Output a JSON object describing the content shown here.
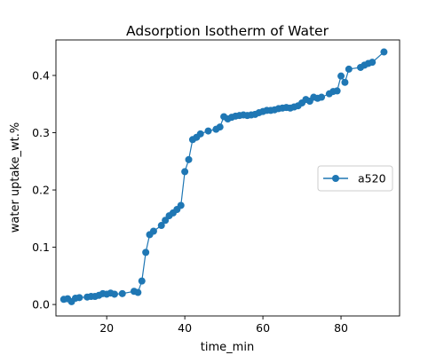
{
  "chart_data": {
    "type": "line",
    "title": "Adsorption Isotherm of Water",
    "xlabel": "time_min",
    "ylabel": "water uptake_wt.%",
    "xlim": [
      7,
      95
    ],
    "ylim": [
      -0.02,
      0.462
    ],
    "xticks": [
      20,
      40,
      60,
      80
    ],
    "yticks": [
      0.0,
      0.1,
      0.2,
      0.3,
      0.4
    ],
    "xtick_labels": [
      "20",
      "40",
      "60",
      "80"
    ],
    "ytick_labels": [
      "0.0",
      "0.1",
      "0.2",
      "0.3",
      "0.4"
    ],
    "grid": false,
    "legend_position": "center-right",
    "series": [
      {
        "name": "a520",
        "color": "#1f77b4",
        "marker": "circle",
        "x": [
          9,
          10,
          11,
          12,
          13,
          15,
          16,
          17,
          18,
          19,
          20,
          21,
          22,
          24,
          27,
          28,
          29,
          30,
          31,
          32,
          34,
          35,
          36,
          37,
          38,
          39,
          40,
          41,
          42,
          43,
          44,
          46,
          48,
          49,
          50,
          51,
          52,
          53,
          54,
          55,
          56,
          57,
          58,
          59,
          60,
          61,
          62,
          63,
          64,
          65,
          66,
          67,
          68,
          69,
          70,
          71,
          72,
          73,
          74,
          75,
          77,
          78,
          79,
          80,
          81,
          82,
          85,
          86,
          87,
          88,
          91
        ],
        "y": [
          0.009,
          0.01,
          0.005,
          0.011,
          0.012,
          0.013,
          0.014,
          0.014,
          0.016,
          0.019,
          0.018,
          0.02,
          0.018,
          0.019,
          0.023,
          0.021,
          0.041,
          0.091,
          0.122,
          0.128,
          0.138,
          0.147,
          0.155,
          0.16,
          0.166,
          0.173,
          0.232,
          0.253,
          0.288,
          0.292,
          0.298,
          0.303,
          0.306,
          0.31,
          0.328,
          0.324,
          0.327,
          0.329,
          0.33,
          0.331,
          0.33,
          0.331,
          0.332,
          0.335,
          0.337,
          0.339,
          0.339,
          0.34,
          0.342,
          0.343,
          0.344,
          0.343,
          0.345,
          0.347,
          0.352,
          0.358,
          0.355,
          0.362,
          0.36,
          0.362,
          0.368,
          0.372,
          0.373,
          0.399,
          0.388,
          0.411,
          0.414,
          0.418,
          0.421,
          0.423,
          0.441
        ]
      }
    ]
  }
}
